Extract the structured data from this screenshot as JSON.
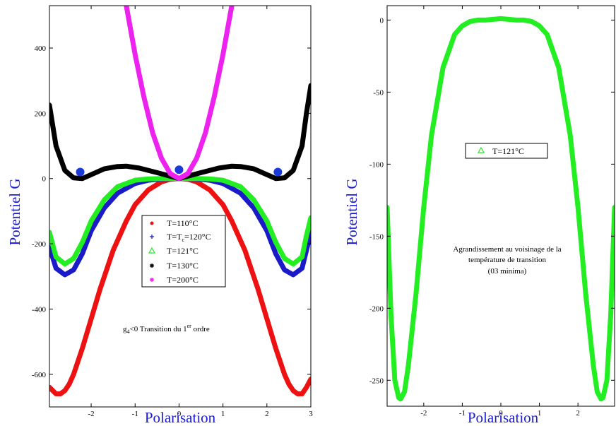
{
  "chart_data": [
    {
      "type": "line",
      "xlabel": "Polarisation",
      "ylabel": "Potentiel G",
      "xlim": [
        -2.95,
        3.0
      ],
      "ylim": [
        -700,
        530
      ],
      "xticks": [
        -2,
        -1,
        0,
        1,
        2,
        3
      ],
      "yticks": [
        -600,
        -400,
        -200,
        0,
        200,
        400
      ],
      "grid": false,
      "legend_position": "center",
      "series": [
        {
          "name": "T=110°C",
          "marker": "dot",
          "color": "#ee1111",
          "x": [
            -2.95,
            -2.8,
            -2.7,
            -2.6,
            -2.5,
            -2.4,
            -2.2,
            -2.0,
            -1.8,
            -1.5,
            -1.2,
            -1.0,
            -0.7,
            -0.4,
            -0.2,
            0,
            0.2,
            0.4,
            0.7,
            1.0,
            1.2,
            1.5,
            1.8,
            2.0,
            2.2,
            2.4,
            2.5,
            2.6,
            2.7,
            2.8,
            2.9,
            3.0
          ],
          "y": [
            -640,
            -660,
            -660,
            -650,
            -630,
            -600,
            -520,
            -430,
            -340,
            -220,
            -130,
            -80,
            -35,
            -10,
            -2,
            0,
            -2,
            -10,
            -35,
            -80,
            -130,
            -220,
            -340,
            -430,
            -520,
            -600,
            -630,
            -650,
            -660,
            -660,
            -640,
            -615
          ]
        },
        {
          "name": "T=T_c=120°C",
          "marker": "plus",
          "color": "#1a1ac8",
          "x": [
            -2.95,
            -2.8,
            -2.6,
            -2.4,
            -2.2,
            -2.0,
            -1.7,
            -1.4,
            -1.0,
            -0.7,
            -0.4,
            0,
            0.4,
            0.7,
            1.0,
            1.4,
            1.7,
            2.0,
            2.2,
            2.4,
            2.6,
            2.8,
            2.9,
            3.0
          ],
          "y": [
            -210,
            -275,
            -295,
            -280,
            -230,
            -160,
            -90,
            -45,
            -15,
            -5,
            -1,
            0,
            -1,
            -5,
            -15,
            -45,
            -90,
            -160,
            -230,
            -280,
            -295,
            -275,
            -220,
            -165
          ]
        },
        {
          "name": "T=121°C",
          "marker": "triangle",
          "color": "#22ee22",
          "x": [
            -2.95,
            -2.8,
            -2.6,
            -2.4,
            -2.2,
            -2.0,
            -1.7,
            -1.4,
            -1.0,
            -0.7,
            -0.4,
            0,
            0.4,
            0.7,
            1.0,
            1.4,
            1.7,
            2.0,
            2.2,
            2.4,
            2.6,
            2.8,
            2.9,
            3.0
          ],
          "y": [
            -165,
            -240,
            -262,
            -245,
            -195,
            -130,
            -65,
            -25,
            -5,
            -1,
            0,
            0,
            0,
            -1,
            -5,
            -25,
            -65,
            -130,
            -195,
            -245,
            -262,
            -240,
            -175,
            -120
          ]
        },
        {
          "name": "T=130°C",
          "marker": "star",
          "color": "#000000",
          "x": [
            -2.95,
            -2.8,
            -2.6,
            -2.4,
            -2.2,
            -2.0,
            -1.7,
            -1.4,
            -1.2,
            -0.9,
            -0.5,
            0,
            0.5,
            0.9,
            1.2,
            1.4,
            1.7,
            2.0,
            2.2,
            2.4,
            2.6,
            2.8,
            2.9,
            3.0
          ],
          "y": [
            225,
            100,
            25,
            2,
            0,
            12,
            30,
            37,
            38,
            32,
            18,
            0,
            18,
            32,
            38,
            37,
            30,
            12,
            0,
            2,
            25,
            100,
            200,
            285
          ]
        },
        {
          "name": "T=200°C",
          "marker": "star",
          "color": "#ee22ee",
          "x": [
            -1.2,
            -1.0,
            -0.8,
            -0.6,
            -0.4,
            -0.2,
            0,
            0.2,
            0.4,
            0.6,
            0.8,
            1.0,
            1.2
          ],
          "y": [
            530,
            380,
            250,
            140,
            62,
            15,
            0,
            15,
            62,
            140,
            250,
            380,
            530
          ]
        }
      ],
      "annotation": "g4<0 Transition du 1er ordre",
      "minima_markers": [
        {
          "x": -2.25,
          "y": 20
        },
        {
          "x": 0,
          "y": 27
        },
        {
          "x": 2.25,
          "y": 20
        }
      ]
    },
    {
      "type": "line",
      "xlabel": "Polarisation",
      "ylabel": "Potentiel G",
      "xlim": [
        -2.95,
        2.95
      ],
      "ylim": [
        -268,
        10
      ],
      "xticks": [
        -2,
        -1,
        0,
        1,
        2
      ],
      "yticks": [
        -250,
        -200,
        -150,
        -100,
        -50,
        0
      ],
      "grid": false,
      "legend_position": "upper-center",
      "series": [
        {
          "name": "T=121°C",
          "marker": "triangle",
          "color": "#22ee22",
          "x": [
            -2.95,
            -2.85,
            -2.75,
            -2.65,
            -2.6,
            -2.5,
            -2.4,
            -2.2,
            -2.0,
            -1.8,
            -1.5,
            -1.2,
            -1.0,
            -0.8,
            -0.6,
            -0.4,
            -0.2,
            0,
            0.2,
            0.4,
            0.6,
            0.8,
            1.0,
            1.2,
            1.5,
            1.8,
            2.0,
            2.2,
            2.4,
            2.5,
            2.6,
            2.65,
            2.75,
            2.85,
            2.95
          ],
          "y": [
            -130,
            -205,
            -250,
            -262,
            -263,
            -258,
            -240,
            -190,
            -130,
            -80,
            -33,
            -10,
            -4,
            -1,
            0,
            0,
            0.5,
            1,
            0.5,
            0,
            0,
            -1,
            -4,
            -10,
            -33,
            -80,
            -130,
            -190,
            -240,
            -258,
            -263,
            -262,
            -250,
            -205,
            -130
          ]
        }
      ],
      "annotation": {
        "line1": "Agrandissement au voisinage de la",
        "line2": "température de transition",
        "line3": "(03 minima)"
      }
    }
  ],
  "text": {
    "annotation_left_g": "g",
    "annotation_left_sub": "4",
    "annotation_left_mid": "<0 Transition du 1",
    "annotation_left_sup": "er",
    "annotation_left_end": " ordre",
    "legend_tc_pre": "T=T",
    "legend_tc_sub": "c",
    "legend_tc_post": "=120°C"
  }
}
